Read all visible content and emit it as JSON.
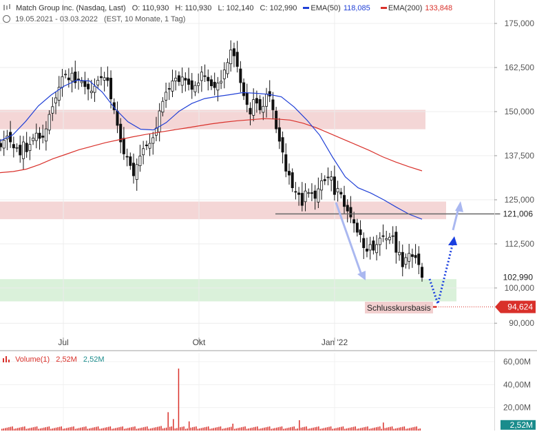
{
  "header": {
    "symbol": "Match Group Inc. (Nasdaq, Last)",
    "open": "O: 110,930",
    "high": "H: 110,930",
    "low": "L: 102,140",
    "close": "C: 102,990",
    "ema50_label": "EMA(50)",
    "ema50_value": "118,085",
    "ema200_label": "EMA(200)",
    "ema200_value": "133,848",
    "range": "19.05.2021 - 03.03.2022",
    "meta": "(EST, 10 Monate, 1 Tag)"
  },
  "volume_header": {
    "label": "Volume(1)",
    "value1": "2,52M",
    "value2": "2,52M"
  },
  "annotations": {
    "basis_label": "Schlusskursbasis",
    "level_resistance": "121,006",
    "level_last": "102,990",
    "level_low": "94,624"
  },
  "colors": {
    "ema50": "#1f3fd6",
    "ema200": "#d9302a",
    "resistance_zone": "#f2cfcf",
    "support_zone": "#d4efd4",
    "arrow_light": "#aab8f0",
    "arrow_dark": "#1a3fe0",
    "volume": "#d9302a"
  },
  "chart_data": {
    "type": "candlestick",
    "y_ticks": [
      {
        "v": 175,
        "label": "175,000"
      },
      {
        "v": 162.5,
        "label": "162,500"
      },
      {
        "v": 150,
        "label": "150,000"
      },
      {
        "v": 137.5,
        "label": "137,500"
      },
      {
        "v": 125,
        "label": "125,000"
      },
      {
        "v": 112.5,
        "label": "112,500"
      },
      {
        "v": 100,
        "label": "100,000"
      },
      {
        "v": 90,
        "label": "90,000"
      }
    ],
    "x_ticks": [
      "Jul",
      "Okt",
      "Jan '22"
    ],
    "ylim": [
      87,
      178
    ],
    "zones": [
      {
        "name": "resistance-upper",
        "from": 145,
        "to": 150.5
      },
      {
        "name": "resistance-lower",
        "from": 119.5,
        "to": 124.5
      },
      {
        "name": "support",
        "from": 96.2,
        "to": 102.5
      }
    ],
    "levels": {
      "resistance": 121.006,
      "last": 102.99,
      "low": 94.624
    },
    "close_series": [
      140.0,
      141.9,
      143.1,
      141.4,
      139.7,
      139.8,
      137.7,
      141.4,
      138.6,
      140.7,
      142.5,
      143.9,
      142.4,
      142.7,
      145.1,
      149.2,
      151.4,
      153.9,
      156.9,
      159.9,
      160.6,
      159.0,
      160.9,
      158.2,
      158.9,
      158.6,
      157.1,
      156.4,
      155.8,
      157.2,
      158.9,
      159.6,
      159.6,
      158.8,
      153.6,
      150.5,
      146.1,
      141.4,
      138.0,
      137.2,
      134.7,
      131.8,
      135.0,
      137.4,
      139.5,
      140.3,
      141.0,
      142.6,
      145.3,
      150.2,
      152.9,
      155.5,
      156.5,
      158.7,
      159.5,
      158.5,
      159.8,
      158.9,
      157.7,
      156.3,
      157.4,
      158.1,
      161.2,
      160.1,
      158.7,
      157.3,
      156.8,
      158.1,
      158.6,
      161.8,
      163.9,
      167.5,
      165.8,
      162.8,
      158.2,
      154.5,
      152.0,
      149.3,
      153.4,
      152.4,
      150.5,
      151.5,
      155.0,
      154.4,
      150.5,
      145.1,
      141.6,
      138.5,
      133.1,
      132.0,
      128.4,
      127.3,
      126.5,
      123.4,
      127.5,
      127.0,
      126.8,
      125.4,
      128.1,
      130.4,
      130.4,
      131.3,
      131.5,
      126.5,
      128.2,
      126.6,
      123.1,
      121.8,
      120.1,
      118.4,
      115.8,
      115.1,
      111.4,
      110.4,
      112.3,
      110.7,
      112.3,
      114.1,
      114.7,
      114.0,
      114.4,
      114.8,
      110.1,
      110.1,
      106.0,
      108.6,
      109.8,
      108.9,
      108.6,
      106.6,
      102.99
    ],
    "ema50": [
      141.7,
      143.4,
      147.2,
      151.6,
      154.7,
      157.2,
      158.9,
      158.7,
      155.5,
      150.8,
      147.1,
      145.0,
      144.8,
      146.9,
      150.1,
      152.3,
      153.7,
      154.3,
      154.8,
      155.4,
      155.2,
      154.9,
      154.2,
      151.3,
      147.6,
      143.3,
      137.1,
      131.5,
      128.4,
      126.9,
      125.0,
      122.9,
      120.9,
      119.5
    ],
    "ema200": [
      132.7,
      133.0,
      133.7,
      135.0,
      136.6,
      137.9,
      139.2,
      140.2,
      141.2,
      142.0,
      142.8,
      143.5,
      144.1,
      144.7,
      145.3,
      145.9,
      146.5,
      147.0,
      147.4,
      147.7,
      148.0,
      147.9,
      147.6,
      146.7,
      145.4,
      143.8,
      142.2,
      140.6,
      139.0,
      137.2,
      135.7,
      134.4,
      133.2
    ]
  },
  "volume_data": {
    "y_ticks": [
      {
        "v": 60,
        "label": "60,00M"
      },
      {
        "v": 40,
        "label": "40,00M"
      },
      {
        "v": 20,
        "label": "20,00M"
      }
    ],
    "last_label": "2,52M",
    "ylim": [
      0,
      66
    ],
    "spike_values": [
      4.0,
      16.0,
      10.0,
      54.0,
      8.0,
      6.0,
      9.0,
      7.0
    ],
    "spike_index": [
      91,
      95,
      98,
      101,
      107,
      132,
      170,
      218
    ]
  }
}
